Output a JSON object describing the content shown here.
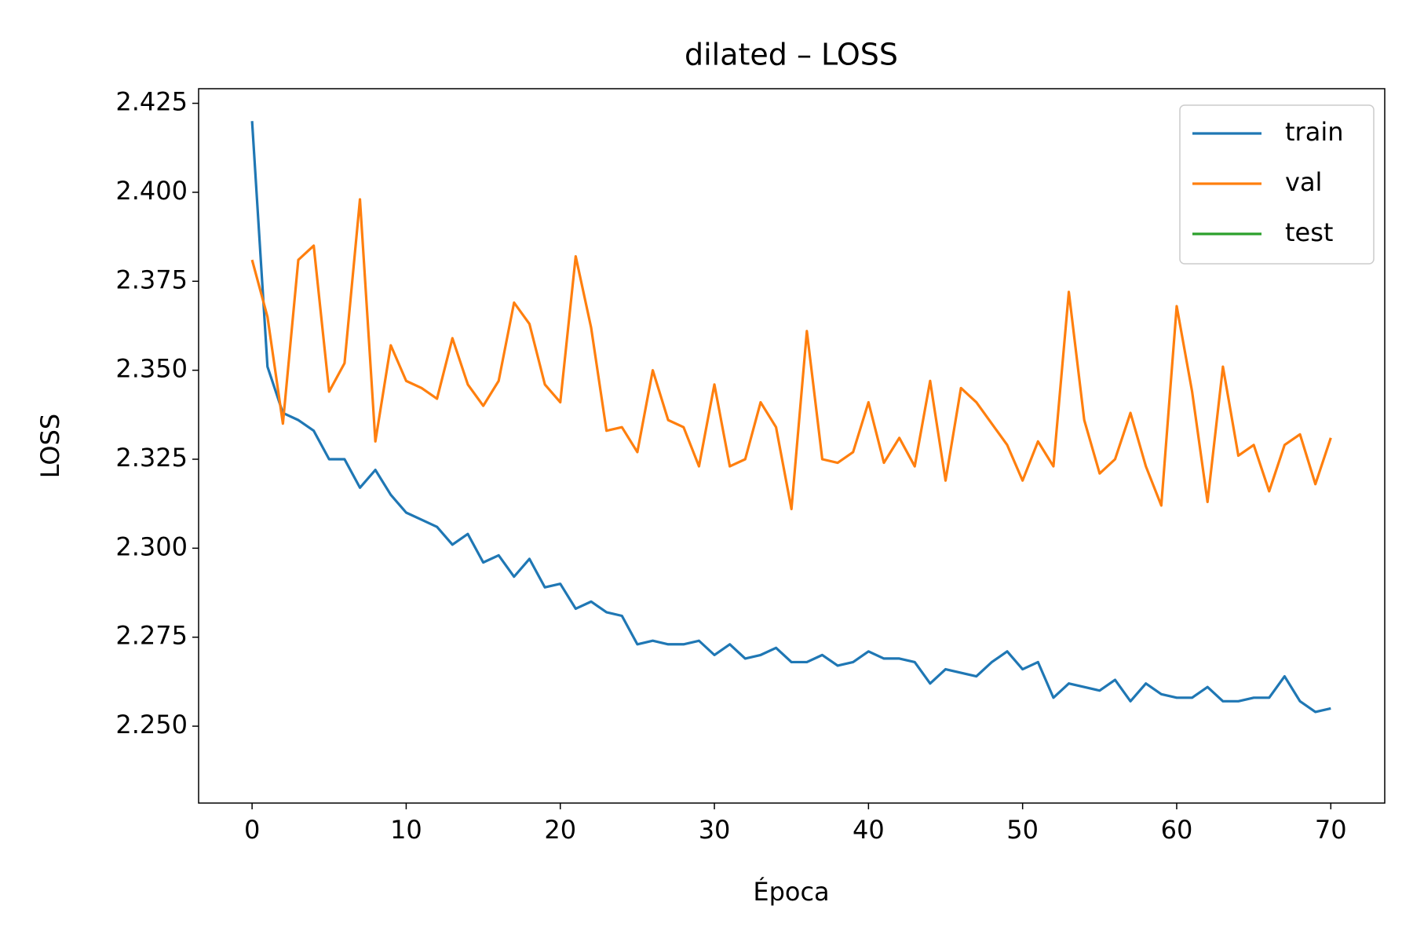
{
  "chart_data": {
    "type": "line",
    "title": "dilated – LOSS",
    "xlabel": "Época",
    "ylabel": "LOSS",
    "x": [
      0,
      1,
      2,
      3,
      4,
      5,
      6,
      7,
      8,
      9,
      10,
      11,
      12,
      13,
      14,
      15,
      16,
      17,
      18,
      19,
      20,
      21,
      22,
      23,
      24,
      25,
      26,
      27,
      28,
      29,
      30,
      31,
      32,
      33,
      34,
      35,
      36,
      37,
      38,
      39,
      40,
      41,
      42,
      43,
      44,
      45,
      46,
      47,
      48,
      49,
      50,
      51,
      52,
      53,
      54,
      55,
      56,
      57,
      58,
      59,
      60,
      61,
      62,
      63,
      64,
      65,
      66,
      67,
      68,
      69,
      70
    ],
    "series": [
      {
        "name": "train",
        "color": "#1f77b4",
        "values": [
          2.42,
          2.351,
          2.338,
          2.336,
          2.333,
          2.325,
          2.325,
          2.317,
          2.322,
          2.315,
          2.31,
          2.308,
          2.306,
          2.301,
          2.304,
          2.296,
          2.298,
          2.292,
          2.297,
          2.289,
          2.29,
          2.283,
          2.285,
          2.282,
          2.281,
          2.273,
          2.274,
          2.273,
          2.273,
          2.274,
          2.27,
          2.273,
          2.269,
          2.27,
          2.272,
          2.268,
          2.268,
          2.27,
          2.267,
          2.268,
          2.271,
          2.269,
          2.269,
          2.268,
          2.262,
          2.266,
          2.265,
          2.264,
          2.268,
          2.271,
          2.266,
          2.268,
          2.258,
          2.262,
          2.261,
          2.26,
          2.263,
          2.257,
          2.262,
          2.259,
          2.258,
          2.258,
          2.261,
          2.257,
          2.257,
          2.258,
          2.258,
          2.264,
          2.257,
          2.254,
          2.255
        ]
      },
      {
        "name": "val",
        "color": "#ff7f0e",
        "values": [
          2.381,
          2.365,
          2.335,
          2.381,
          2.385,
          2.344,
          2.352,
          2.398,
          2.33,
          2.357,
          2.347,
          2.345,
          2.342,
          2.359,
          2.346,
          2.34,
          2.347,
          2.369,
          2.363,
          2.346,
          2.341,
          2.382,
          2.362,
          2.333,
          2.334,
          2.327,
          2.35,
          2.336,
          2.334,
          2.323,
          2.346,
          2.323,
          2.325,
          2.341,
          2.334,
          2.311,
          2.361,
          2.325,
          2.324,
          2.327,
          2.341,
          2.324,
          2.331,
          2.323,
          2.347,
          2.319,
          2.345,
          2.341,
          2.335,
          2.329,
          2.319,
          2.33,
          2.323,
          2.372,
          2.336,
          2.321,
          2.325,
          2.338,
          2.323,
          2.312,
          2.368,
          2.344,
          2.313,
          2.351,
          2.326,
          2.329,
          2.316,
          2.329,
          2.332,
          2.318,
          2.331
        ]
      },
      {
        "name": "test",
        "color": "#2ca02c",
        "values": [
          null,
          null,
          null,
          null,
          null,
          null,
          null,
          null,
          null,
          null,
          null,
          null,
          null,
          null,
          null,
          null,
          null,
          null,
          null,
          null,
          null,
          null,
          null,
          null,
          null,
          null,
          null,
          null,
          null,
          null,
          null,
          null,
          null,
          null,
          null,
          null,
          null,
          null,
          null,
          null,
          null,
          null,
          null,
          null,
          null,
          null,
          null,
          null,
          null,
          null,
          null,
          null,
          null,
          null,
          null,
          null,
          null,
          null,
          null,
          null,
          null,
          null,
          null,
          null,
          null,
          null,
          null,
          null,
          null,
          null,
          null
        ]
      }
    ],
    "xlim": [
      -3.47,
      73.5
    ],
    "xticks": [
      0,
      10,
      20,
      30,
      40,
      50,
      60,
      70
    ],
    "ylim": [
      2.2284,
      2.4291
    ],
    "yticks": [
      {
        "value": 2.25,
        "label": "2.250"
      },
      2.275,
      {
        "value": 2.3,
        "label": "2.300"
      },
      2.325,
      {
        "value": 2.35,
        "label": "2.350"
      },
      2.375,
      {
        "value": 2.4,
        "label": "2.400"
      },
      2.425
    ],
    "legend": "upper right",
    "grid": false
  }
}
